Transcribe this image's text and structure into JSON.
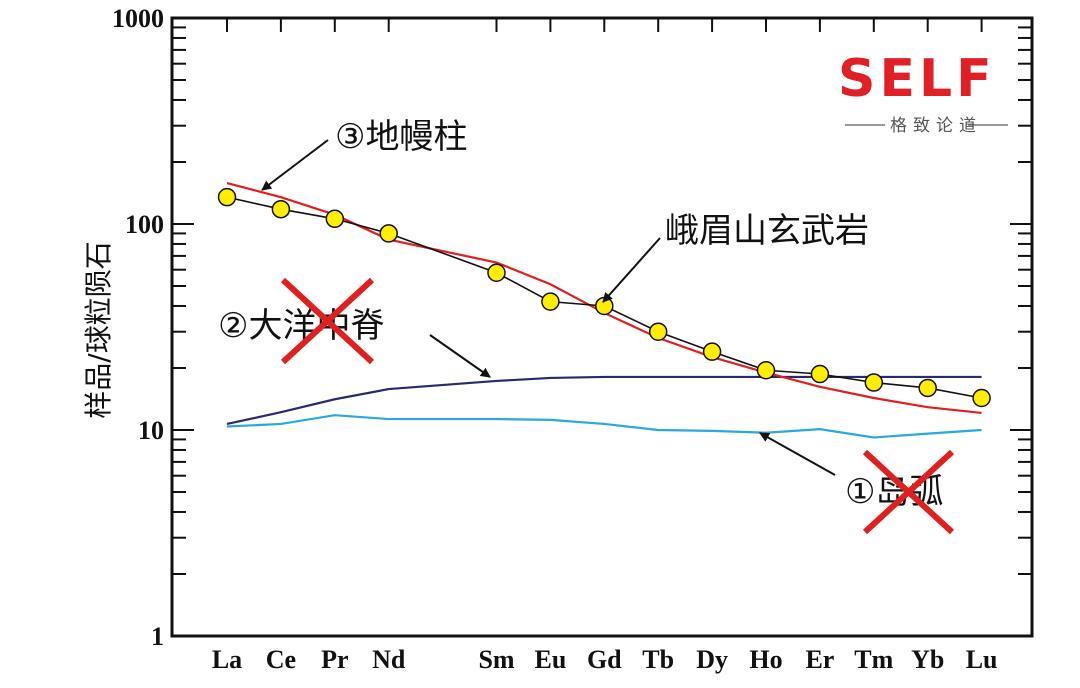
{
  "chart_data": {
    "type": "line",
    "title": "",
    "xlabel": "",
    "ylabel": "样品/球粒陨石",
    "yscale": "log",
    "ylim": [
      1,
      1000
    ],
    "yticks": [
      "1",
      "10",
      "100",
      "1000"
    ],
    "categories": [
      "La",
      "Ce",
      "Pr",
      "Nd",
      "Sm",
      "Eu",
      "Gd",
      "Tb",
      "Dy",
      "Ho",
      "Er",
      "Tm",
      "Yb",
      "Lu"
    ],
    "grid": false,
    "series": [
      {
        "name": "峨眉山玄武岩",
        "color": "#111111",
        "marker": "circle",
        "marker_color": "#ffee00",
        "values": [
          135,
          118,
          106,
          90,
          58,
          42,
          40,
          30,
          24,
          19.5,
          18.7,
          17,
          16,
          14.3
        ]
      },
      {
        "name": "③地幔柱",
        "color": "#e02020",
        "values": [
          158,
          135,
          111,
          84,
          65,
          51,
          37,
          28,
          22.6,
          19,
          16.2,
          14.3,
          12.9,
          12.1
        ]
      },
      {
        "name": "②大洋中脊",
        "color": "#2a2a70",
        "values": [
          10.7,
          12.2,
          14.1,
          15.8,
          17.3,
          17.9,
          18.1,
          18.1,
          18.1,
          18.1,
          18.1,
          18.1,
          18.1,
          18.1
        ]
      },
      {
        "name": "①岛弧",
        "color": "#2aa8e0",
        "values": [
          10.4,
          10.7,
          11.8,
          11.3,
          11.3,
          11.2,
          10.7,
          10.0,
          9.9,
          9.7,
          10.1,
          9.2,
          9.6,
          10.0
        ]
      }
    ],
    "annotations": {
      "plume": "③地幔柱",
      "emeishan": "峨眉山玄武岩",
      "morb": "②大洋中脊",
      "arc": "①岛弧"
    },
    "crossed_out": [
      "②大洋中脊",
      "①岛弧"
    ],
    "cross_color": "#e0201f"
  },
  "logo": {
    "text": "SELF",
    "slogan": "格致论道",
    "color": "#e02026"
  }
}
